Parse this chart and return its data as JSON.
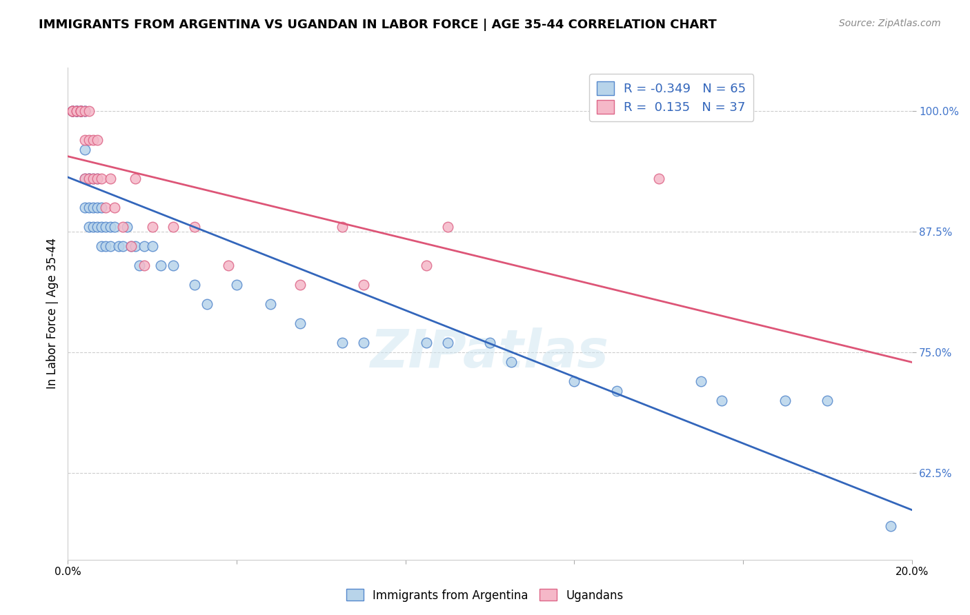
{
  "title": "IMMIGRANTS FROM ARGENTINA VS UGANDAN IN LABOR FORCE | AGE 35-44 CORRELATION CHART",
  "source": "Source: ZipAtlas.com",
  "ylabel": "In Labor Force | Age 35-44",
  "xlim": [
    0.0,
    0.2
  ],
  "ylim": [
    0.535,
    1.045
  ],
  "xticks": [
    0.0,
    0.04,
    0.08,
    0.12,
    0.16,
    0.2
  ],
  "xticklabels": [
    "0.0%",
    "",
    "",
    "",
    "",
    "20.0%"
  ],
  "yticks": [
    0.625,
    0.75,
    0.875,
    1.0
  ],
  "yticklabels": [
    "62.5%",
    "75.0%",
    "87.5%",
    "100.0%"
  ],
  "blue_color": "#b8d4ea",
  "pink_color": "#f5b8c8",
  "blue_edge": "#5588cc",
  "pink_edge": "#dd6688",
  "trend_blue": "#3366bb",
  "trend_pink": "#dd5577",
  "legend_R_blue": "-0.349",
  "legend_N_blue": "65",
  "legend_R_pink": "0.135",
  "legend_N_pink": "37",
  "legend_label_blue": "Immigrants from Argentina",
  "legend_label_pink": "Ugandans",
  "watermark": "ZIPatlas",
  "blue_scatter_x": [
    0.001,
    0.001,
    0.001,
    0.002,
    0.002,
    0.002,
    0.002,
    0.002,
    0.003,
    0.003,
    0.003,
    0.003,
    0.003,
    0.003,
    0.004,
    0.004,
    0.004,
    0.004,
    0.004,
    0.005,
    0.005,
    0.005,
    0.005,
    0.006,
    0.006,
    0.006,
    0.007,
    0.007,
    0.007,
    0.008,
    0.008,
    0.008,
    0.009,
    0.009,
    0.01,
    0.01,
    0.011,
    0.012,
    0.013,
    0.014,
    0.015,
    0.016,
    0.017,
    0.018,
    0.02,
    0.022,
    0.025,
    0.03,
    0.033,
    0.04,
    0.048,
    0.055,
    0.065,
    0.07,
    0.085,
    0.09,
    0.1,
    0.105,
    0.12,
    0.13,
    0.15,
    0.155,
    0.17,
    0.18,
    0.195
  ],
  "blue_scatter_y": [
    1.0,
    1.0,
    1.0,
    1.0,
    1.0,
    1.0,
    1.0,
    1.0,
    1.0,
    1.0,
    1.0,
    1.0,
    1.0,
    1.0,
    1.0,
    1.0,
    0.96,
    0.93,
    0.9,
    0.93,
    0.9,
    0.88,
    0.93,
    0.93,
    0.9,
    0.88,
    0.88,
    0.9,
    0.93,
    0.9,
    0.88,
    0.86,
    0.88,
    0.86,
    0.88,
    0.86,
    0.88,
    0.86,
    0.86,
    0.88,
    0.86,
    0.86,
    0.84,
    0.86,
    0.86,
    0.84,
    0.84,
    0.82,
    0.8,
    0.82,
    0.8,
    0.78,
    0.76,
    0.76,
    0.76,
    0.76,
    0.76,
    0.74,
    0.72,
    0.71,
    0.72,
    0.7,
    0.7,
    0.7,
    0.57
  ],
  "pink_scatter_x": [
    0.001,
    0.001,
    0.001,
    0.002,
    0.002,
    0.003,
    0.003,
    0.003,
    0.003,
    0.004,
    0.004,
    0.004,
    0.005,
    0.005,
    0.005,
    0.006,
    0.006,
    0.007,
    0.007,
    0.008,
    0.009,
    0.01,
    0.011,
    0.013,
    0.015,
    0.016,
    0.018,
    0.02,
    0.025,
    0.03,
    0.038,
    0.055,
    0.065,
    0.07,
    0.085,
    0.09,
    0.14
  ],
  "pink_scatter_y": [
    1.0,
    1.0,
    1.0,
    1.0,
    1.0,
    1.0,
    1.0,
    1.0,
    1.0,
    1.0,
    0.97,
    0.93,
    1.0,
    0.97,
    0.93,
    0.97,
    0.93,
    0.97,
    0.93,
    0.93,
    0.9,
    0.93,
    0.9,
    0.88,
    0.86,
    0.93,
    0.84,
    0.88,
    0.88,
    0.88,
    0.84,
    0.82,
    0.88,
    0.82,
    0.84,
    0.88,
    0.93
  ]
}
